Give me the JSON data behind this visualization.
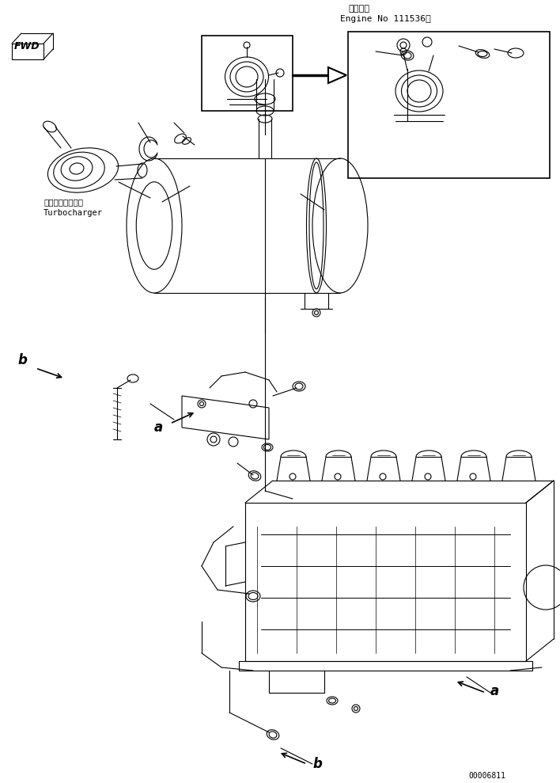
{
  "title_jp": "適用号機",
  "title_en": "Engine No 111536～",
  "label_a": "a",
  "label_b": "b",
  "fwd_text": "FWD",
  "turbo_jp": "ターボチャージャ",
  "turbo_en": "Turbocharger",
  "part_number": "00006811",
  "bg_color": "#ffffff",
  "line_color": "#000000",
  "line_width": 0.8,
  "fig_width": 7.08,
  "fig_height": 9.89,
  "dpi": 100
}
